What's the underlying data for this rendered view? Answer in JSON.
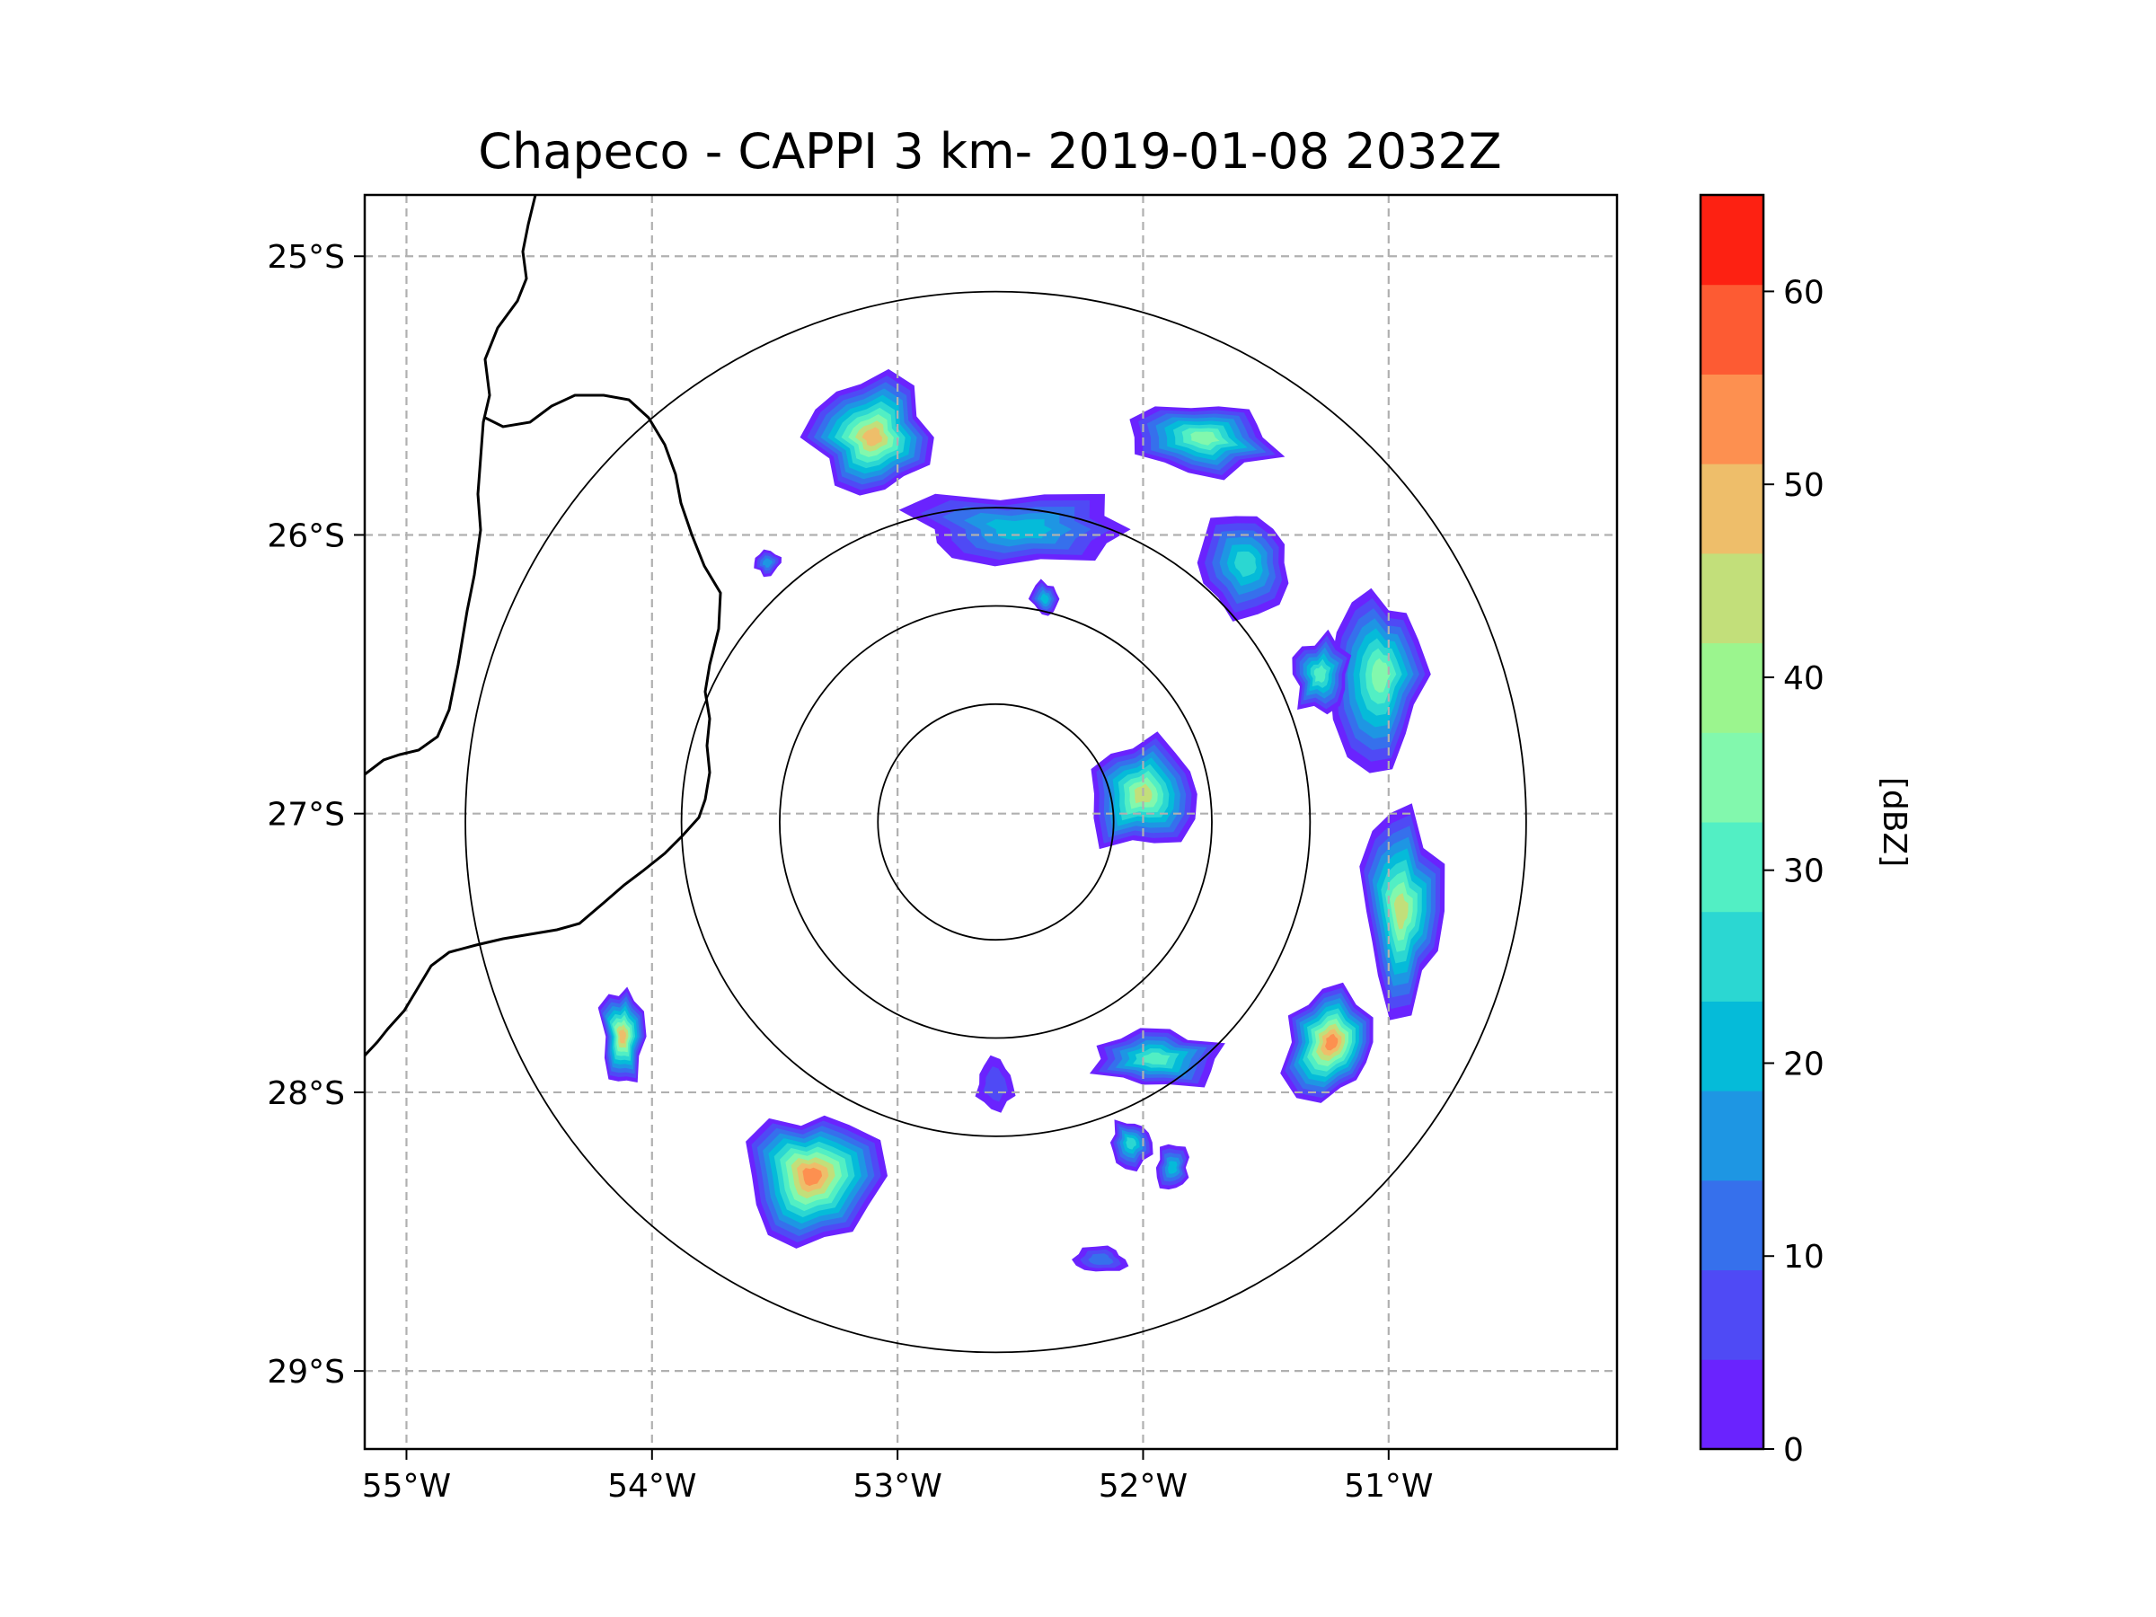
{
  "chart_data": {
    "type": "heatmap",
    "title": "Chapeco - CAPPI 3 km- 2019-01-08 2032Z",
    "x_ticks": [
      {
        "value": -55,
        "label": "55°W"
      },
      {
        "value": -54,
        "label": "54°W"
      },
      {
        "value": -53,
        "label": "53°W"
      },
      {
        "value": -52,
        "label": "52°W"
      },
      {
        "value": -51,
        "label": "51°W"
      }
    ],
    "y_ticks": [
      {
        "value": -25,
        "label": "25°S"
      },
      {
        "value": -26,
        "label": "26°S"
      },
      {
        "value": -27,
        "label": "27°S"
      },
      {
        "value": -28,
        "label": "28°S"
      },
      {
        "value": -29,
        "label": "29°S"
      }
    ],
    "xlim": [
      -55.17,
      -50.07
    ],
    "ylim": [
      -29.28,
      -24.78
    ],
    "grid": true,
    "radar_center": {
      "lon": -52.6,
      "lat": -27.03
    },
    "range_rings_deg": [
      0.48,
      0.88,
      1.28,
      2.16
    ],
    "colorbar": {
      "label": "[dBZ]",
      "min": 0,
      "max": 65,
      "ticks": [
        0,
        10,
        20,
        30,
        40,
        50,
        60
      ],
      "colors": [
        "#6a23fe",
        "#4f4af5",
        "#3670ec",
        "#1e96e3",
        "#05bbd9",
        "#2bd7d2",
        "#52efc4",
        "#82f8ad",
        "#9bf58e",
        "#c2df7a",
        "#eebe6a",
        "#fd9050",
        "#fd5b33",
        "#fd2112"
      ]
    },
    "echoes": [
      {
        "lon": -53.1,
        "lat": -25.65,
        "rx": 0.25,
        "ry": 0.25,
        "peak_dbz": 50
      },
      {
        "lon": -52.5,
        "lat": -25.98,
        "rx": 0.45,
        "ry": 0.15,
        "peak_dbz": 25
      },
      {
        "lon": -52.0,
        "lat": -26.93,
        "rx": 0.23,
        "ry": 0.23,
        "peak_dbz": 45
      },
      {
        "lon": -51.75,
        "lat": -25.65,
        "rx": 0.3,
        "ry": 0.15,
        "peak_dbz": 40
      },
      {
        "lon": -51.58,
        "lat": -26.1,
        "rx": 0.2,
        "ry": 0.2,
        "peak_dbz": 30
      },
      {
        "lon": -51.03,
        "lat": -26.5,
        "rx": 0.18,
        "ry": 0.35,
        "peak_dbz": 40
      },
      {
        "lon": -51.28,
        "lat": -26.5,
        "rx": 0.12,
        "ry": 0.15,
        "peak_dbz": 35
      },
      {
        "lon": -50.95,
        "lat": -27.35,
        "rx": 0.17,
        "ry": 0.38,
        "peak_dbz": 45
      },
      {
        "lon": -51.23,
        "lat": -27.82,
        "rx": 0.2,
        "ry": 0.25,
        "peak_dbz": 55
      },
      {
        "lon": -51.95,
        "lat": -27.88,
        "rx": 0.28,
        "ry": 0.13,
        "peak_dbz": 35
      },
      {
        "lon": -52.05,
        "lat": -28.18,
        "rx": 0.09,
        "ry": 0.1,
        "peak_dbz": 30
      },
      {
        "lon": -51.88,
        "lat": -28.27,
        "rx": 0.07,
        "ry": 0.09,
        "peak_dbz": 25
      },
      {
        "lon": -52.17,
        "lat": -28.6,
        "rx": 0.1,
        "ry": 0.05,
        "peak_dbz": 15
      },
      {
        "lon": -53.35,
        "lat": -28.3,
        "rx": 0.25,
        "ry": 0.27,
        "peak_dbz": 55
      },
      {
        "lon": -54.12,
        "lat": -27.8,
        "rx": 0.09,
        "ry": 0.22,
        "peak_dbz": 50
      },
      {
        "lon": -52.6,
        "lat": -27.97,
        "rx": 0.08,
        "ry": 0.1,
        "peak_dbz": 10
      },
      {
        "lon": -52.4,
        "lat": -26.23,
        "rx": 0.06,
        "ry": 0.07,
        "peak_dbz": 25
      },
      {
        "lon": -53.53,
        "lat": -26.1,
        "rx": 0.06,
        "ry": 0.05,
        "peak_dbz": 20
      }
    ]
  }
}
